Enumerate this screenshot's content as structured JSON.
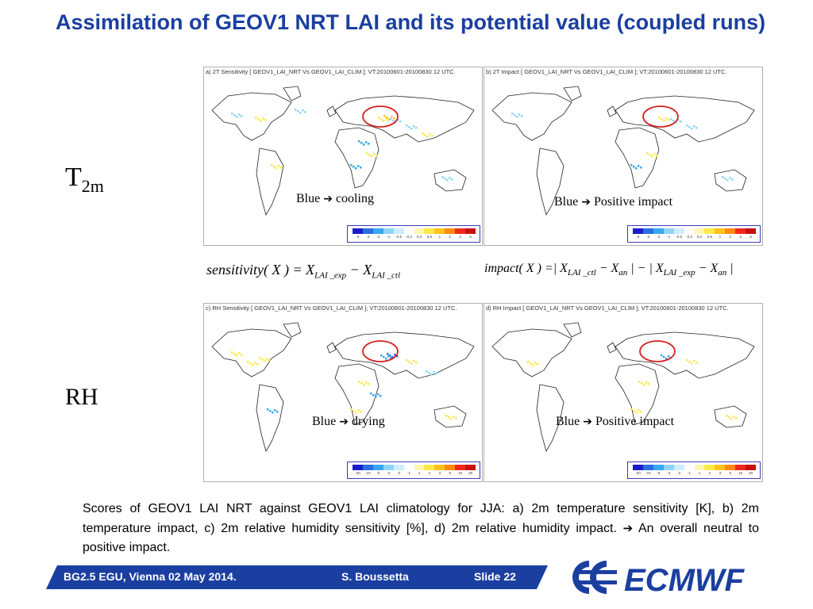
{
  "slide": {
    "title": "Assimilation of GEOV1 NRT LAI and its potential value (coupled runs)"
  },
  "panels": {
    "a": {
      "header": "a) 2T Sensitivity [ GEOV1_LAI_NRT Vs GEOV1_LAI_CLIM ]; VT:20100601-20100830 12 UTC."
    },
    "b": {
      "header": "b) 2T Impact [ GEOV1_LAI_NRT Vs GEOV1_LAI_CLIM ]; VT:20100601-20100830 12 UTC."
    },
    "c": {
      "header": "c) RH Sensitivity [ GEOV1_LAI_NRT Vs GEOV1_LAI_CLIM ]; VT:20100601-20100830 12 UTC."
    },
    "d": {
      "header": "d) RH Impact [ GEOV1_LAI_NRT Vs GEOV1_LAI_CLIM ]; VT:20100601-20100830 12 UTC."
    }
  },
  "colorbars": {
    "temperature": {
      "ticks": [
        "-5",
        "-3",
        "-2",
        "-1",
        "-0.5",
        "-0.2",
        "0.2",
        "0.5",
        "1",
        "2",
        "3",
        "5"
      ],
      "colors": [
        "#1c1cc8",
        "#2a6ee0",
        "#36a8f0",
        "#8fd4f8",
        "#cdeefc",
        "#ffffff",
        "#fff6b0",
        "#ffe84a",
        "#ffc21c",
        "#ff8a10",
        "#f0281a",
        "#c80f0f"
      ]
    },
    "humidity": {
      "ticks": [
        "-20",
        "-10",
        "-5",
        "-3",
        "-2",
        "-1",
        "1",
        "2",
        "3",
        "5",
        "10",
        "20"
      ],
      "colors": [
        "#1c1cc8",
        "#2a6ee0",
        "#36a8f0",
        "#8fd4f8",
        "#cdeefc",
        "#ffffff",
        "#fff6b0",
        "#ffe84a",
        "#ffc21c",
        "#ff8a10",
        "#f0281a",
        "#c80f0f"
      ]
    }
  },
  "labels": {
    "cooling_blue": "Blue",
    "cooling_text": "cooling",
    "impact_blue_1": "Blue",
    "impact_text_1": "Positive impact",
    "drying_blue": "Blue",
    "drying_text": "drying",
    "impact_blue_2": "Blue",
    "impact_text_2": "Positive impact",
    "arrow_glyph": "➔"
  },
  "rows": {
    "t2m_main": "T",
    "t2m_sub": "2m",
    "rh": "RH"
  },
  "formulas": {
    "sensitivity": {
      "name": "sensitivity",
      "lhs_open": "( X ) = X",
      "sub1": "LAI _exp",
      "minus": " − X",
      "sub2": "LAI _ctl"
    },
    "impact": {
      "name": "impact",
      "lhs_open": "( X ) =| X",
      "sub1": "LAI _ctl",
      "mid1": " − X",
      "sub2": "an",
      "mid2": " | − | X",
      "sub3": "LAI _exp",
      "mid3": " − X",
      "sub4": "an",
      "end": " |"
    }
  },
  "caption": {
    "main": "Scores of GEOV1 LAI NRT against GEOV1 LAI climatology for JJA: a) 2m temperature sensitivity [K], b) 2m temperature impact,  c) 2m relative humidity sensitivity [%], d) 2m relative humidity impact.",
    "arrow": "➔",
    "conclusion": "An overall neutral to positive impact."
  },
  "footer": {
    "event": "BG2.5  EGU, Vienna 02 May 2014.",
    "author": "S. Boussetta",
    "slide": "Slide 22"
  },
  "logo": {
    "text": "ECMWF",
    "color": "#1b3fa0"
  },
  "colors": {
    "title": "#1b3fa0",
    "coastline": "#222222",
    "highlight_circle": "#d42020"
  }
}
